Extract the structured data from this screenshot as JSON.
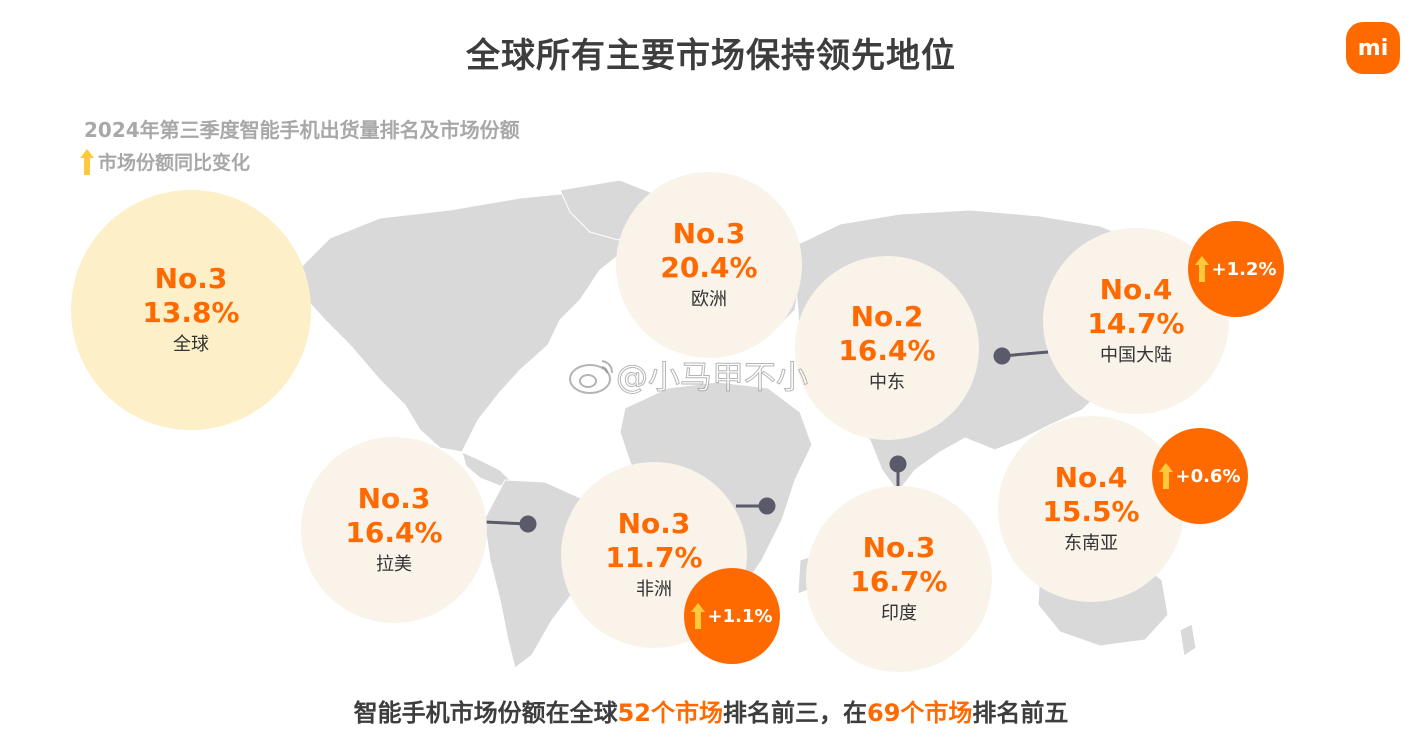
{
  "header": {
    "title": "全球所有主要市场保持领先地位",
    "logo_text": "mi"
  },
  "subtitle": "2024年第三季度智能手机出货量排名及市场份额",
  "legend": {
    "label": "市场份额同比变化",
    "icon": "up-arrow-icon"
  },
  "colors": {
    "accent": "#ff6a00",
    "arrow": "#ffc93c",
    "circle_fill": "#f9f3ea",
    "global_fill": "#fdefc8",
    "map": "#d9d9d9"
  },
  "regions": {
    "global": {
      "rank": "No.3",
      "share": "13.8%",
      "name": "全球"
    },
    "europe": {
      "rank": "No.3",
      "share": "20.4%",
      "name": "欧洲"
    },
    "middle_east": {
      "rank": "No.2",
      "share": "16.4%",
      "name": "中东"
    },
    "china": {
      "rank": "No.4",
      "share": "14.7%",
      "name": "中国大陆",
      "change": "+1.2%"
    },
    "latam": {
      "rank": "No.3",
      "share": "16.4%",
      "name": "拉美"
    },
    "africa": {
      "rank": "No.3",
      "share": "11.7%",
      "name": "非洲",
      "change": "+1.1%"
    },
    "india": {
      "rank": "No.3",
      "share": "16.7%",
      "name": "印度"
    },
    "sea": {
      "rank": "No.4",
      "share": "15.5%",
      "name": "东南亚",
      "change": "+0.6%"
    }
  },
  "watermark": "@小马甲不小",
  "footer": {
    "part1": "智能手机市场份额在全球",
    "hl1": "52个市场",
    "part2": "排名前三，在",
    "hl2": "69个市场",
    "part3": "排名前五"
  }
}
